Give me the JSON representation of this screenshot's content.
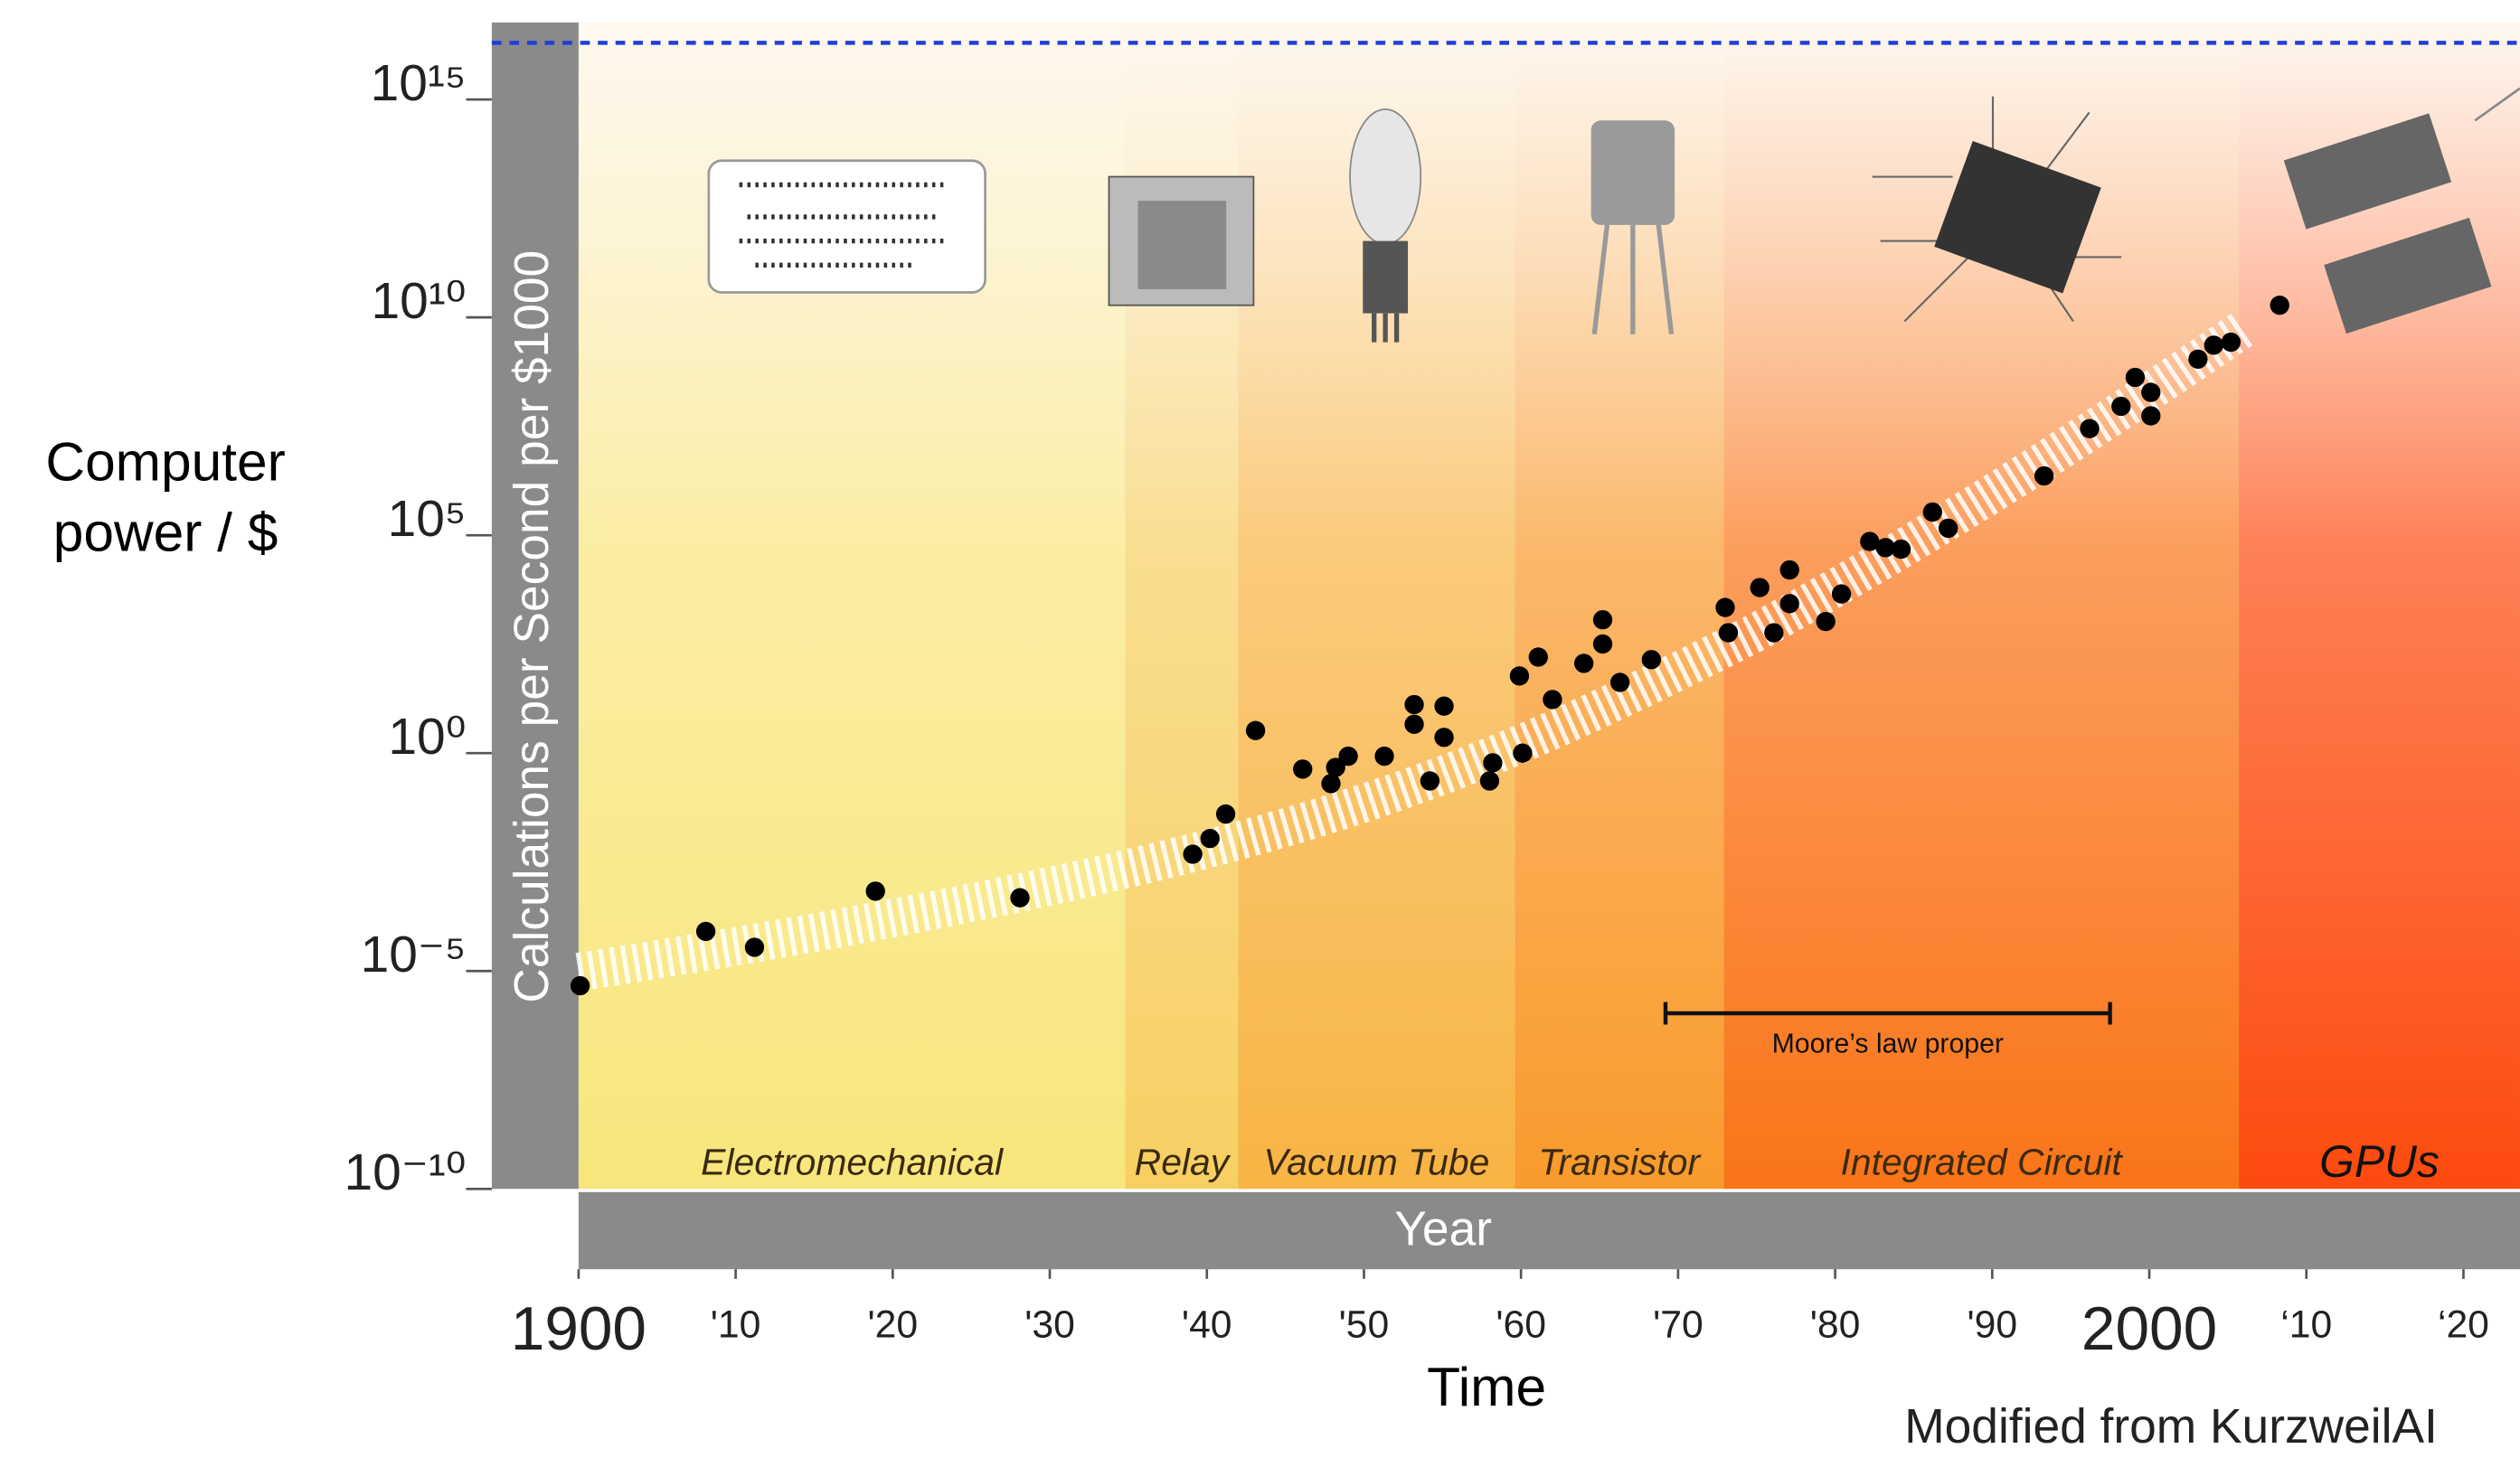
{
  "chart_data": {
    "type": "scatter",
    "log_scale": "y",
    "color": "#000000",
    "x": [
      1900.1,
      1908.1,
      1911.2,
      1918.9,
      1928.1,
      1939.1,
      1940.2,
      1941.2,
      1943.1,
      1946.1,
      1947.9,
      1948.2,
      1949.0,
      1951.3,
      1953.2,
      1953.2,
      1954.2,
      1955.1,
      1955.1,
      1958.0,
      1958.2,
      1960.1,
      1959.9,
      1961.1,
      1962.0,
      1964.0,
      1965.2,
      1965.2,
      1966.3,
      1968.3,
      1973.0,
      1973.2,
      1975.2,
      1976.1,
      1977.1,
      1977.1,
      1979.4,
      1980.4,
      1982.2,
      1983.2,
      1984.2,
      1986.2,
      1987.2,
      1993.3,
      1996.2,
      1998.2,
      1999.1,
      2000.1,
      2000.1,
      2003.1,
      2004.1,
      2005.2,
      2008.3
    ],
    "values": [
      4.6e-06,
      8.1e-05,
      3.5e-05,
      0.00068,
      0.00048,
      0.0048,
      0.011,
      0.04,
      3.3,
      0.43,
      0.2,
      0.47,
      0.85,
      0.85,
      13,
      4.6,
      0.23,
      12,
      2.3,
      0.23,
      0.6,
      1,
      59,
      160,
      17,
      115,
      1150,
      320,
      42,
      140,
      2200,
      580,
      6300,
      580,
      16000,
      2700,
      1050,
      4500,
      72000,
      52000,
      48000,
      340000,
      145000,
      2300000.0,
      28000000.0,
      91000000.0,
      420000000.0,
      190000000.0,
      55000000.0,
      1100000000.0,
      2300000000.0,
      2700000000.0,
      19000000000.0
    ],
    "xlim": [
      1900,
      2023.6
    ],
    "ylim": [
      1e-10,
      6e+16
    ],
    "xticks": [
      1900,
      {
        "value": 1910,
        "label": "'10"
      },
      {
        "value": 1920,
        "label": "'20"
      },
      {
        "value": 1930,
        "label": "'30"
      },
      {
        "value": 1940,
        "label": "'40"
      },
      {
        "value": 1950,
        "label": "'50"
      },
      {
        "value": 1960,
        "label": "'60"
      },
      {
        "value": 1970,
        "label": "'70"
      },
      {
        "value": 1980,
        "label": "'80"
      },
      {
        "value": 1990,
        "label": "'90"
      },
      2000,
      {
        "value": 2010,
        "label": "‘10"
      },
      {
        "value": 2020,
        "label": "‘20"
      }
    ],
    "yticks": [
      {
        "value": 1e-10,
        "label": "10⁻¹⁰"
      },
      {
        "value": 1e-05,
        "label": "10⁻⁵"
      },
      {
        "value": 1,
        "label": "10⁰"
      },
      {
        "value": 100000.0,
        "label": "10⁵"
      },
      {
        "value": 10000000000.0,
        "label": "10¹⁰"
      },
      {
        "value": 1000000000000000.0,
        "label": "10¹⁵"
      }
    ],
    "y_axis_label": "Calculations per Second per $1000",
    "x_axis_label": "Year",
    "outer_y_label": [
      "Computer",
      "power / $"
    ],
    "outer_x_label": "Time",
    "source": "Modified from KurzweilAI",
    "reference_line": {
      "value": 2e+16,
      "color": "#1f3fd6"
    },
    "eras": [
      {
        "label": "Electromechanical",
        "start": 1900,
        "end": 1934.8,
        "color": "#f8e67c"
      },
      {
        "label": "Relay",
        "start": 1934.8,
        "end": 1942,
        "color": "#f7cf62"
      },
      {
        "label": "Vacuum Tube",
        "start": 1942,
        "end": 1959.6,
        "color": "#f8b444"
      },
      {
        "label": "Transistor",
        "start": 1959.6,
        "end": 1972.9,
        "color": "#f99a2c"
      },
      {
        "label": "Integrated Circuit",
        "start": 1972.9,
        "end": 2005.7,
        "color": "#fa7418"
      },
      {
        "label": "GPUs",
        "start": 2005.7,
        "end": 2023.6,
        "color": "#fd4a0e"
      }
    ],
    "annotation": {
      "text": "Moore’s law proper",
      "x_start": 1969.2,
      "x_end": 1997.5,
      "y": 1.07e-06
    }
  }
}
